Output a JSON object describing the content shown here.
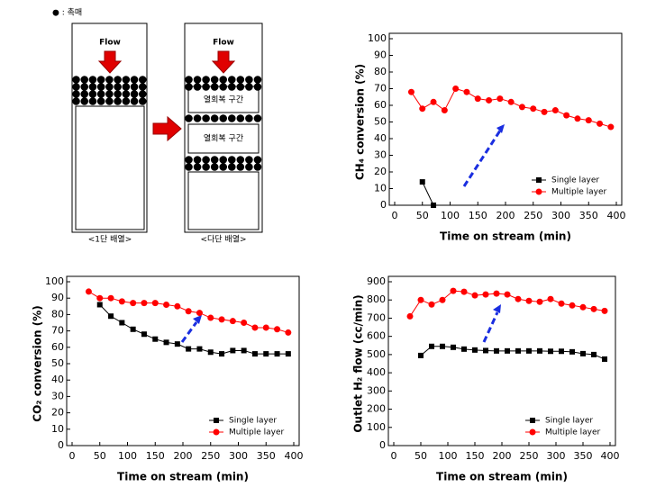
{
  "diagram": {
    "legend": "● : 촉매",
    "panels": [
      {
        "flow": "Flow",
        "caption": "<1단 배열>"
      },
      {
        "flow": "Flow",
        "zones": [
          "열회복 구간",
          "열회복 구간"
        ],
        "caption": "<다단 배열>"
      }
    ]
  },
  "chart_data": [
    {
      "type": "line",
      "xlabel": "Time on stream (min)",
      "ylabel": "CH₄ conversion (%)",
      "x": [
        30,
        50,
        70,
        90,
        110,
        130,
        150,
        170,
        190,
        210,
        230,
        250,
        270,
        290,
        310,
        330,
        350,
        370,
        390
      ],
      "series": [
        {
          "name": "Single layer",
          "color": "#000000",
          "marker": "square",
          "values": [
            null,
            14,
            0,
            null,
            null,
            null,
            null,
            null,
            null,
            null,
            null,
            null,
            null,
            null,
            null,
            null,
            null,
            null,
            null
          ]
        },
        {
          "name": "Multiple layer",
          "color": "#ff0000",
          "marker": "circle",
          "values": [
            68,
            58,
            62,
            57,
            70,
            68,
            64,
            63,
            64,
            62,
            59,
            58,
            56,
            57,
            54,
            52,
            51,
            49,
            47
          ]
        }
      ],
      "xlim": [
        0,
        400
      ],
      "xticks": [
        0,
        50,
        100,
        150,
        200,
        250,
        300,
        350,
        400
      ],
      "ylim": [
        0,
        100
      ],
      "yticks": [
        0,
        10,
        20,
        30,
        40,
        50,
        60,
        70,
        80,
        90,
        100
      ],
      "legend": "lower right"
    },
    {
      "type": "line",
      "xlabel": "Time on stream (min)",
      "ylabel": "CO₂ conversion (%)",
      "x": [
        30,
        50,
        70,
        90,
        110,
        130,
        150,
        170,
        190,
        210,
        230,
        250,
        270,
        290,
        310,
        330,
        350,
        370,
        390
      ],
      "series": [
        {
          "name": "Single layer",
          "color": "#000000",
          "marker": "square",
          "values": [
            null,
            86,
            79,
            75,
            71,
            68,
            65,
            63,
            62,
            59,
            59,
            57,
            56,
            58,
            58,
            56,
            56,
            56,
            56
          ]
        },
        {
          "name": "Multiple layer",
          "color": "#ff0000",
          "marker": "circle",
          "values": [
            94,
            90,
            90,
            88,
            87,
            87,
            87,
            86,
            85,
            82,
            81,
            78,
            77,
            76,
            75,
            72,
            72,
            71,
            69
          ]
        }
      ],
      "xlim": [
        0,
        400
      ],
      "xticks": [
        0,
        50,
        100,
        150,
        200,
        250,
        300,
        350,
        400
      ],
      "ylim": [
        0,
        100
      ],
      "yticks": [
        0,
        10,
        20,
        30,
        40,
        50,
        60,
        70,
        80,
        90,
        100
      ],
      "legend": "lower right"
    },
    {
      "type": "line",
      "xlabel": "Time on stream (min)",
      "ylabel": "Outlet H₂ flow (cc/min)",
      "x": [
        30,
        50,
        70,
        90,
        110,
        130,
        150,
        170,
        190,
        210,
        230,
        250,
        270,
        290,
        310,
        330,
        350,
        370,
        390
      ],
      "series": [
        {
          "name": "Single layer",
          "color": "#000000",
          "marker": "square",
          "values": [
            null,
            495,
            545,
            545,
            540,
            530,
            525,
            522,
            520,
            520,
            520,
            520,
            520,
            518,
            518,
            515,
            505,
            500,
            475
          ]
        },
        {
          "name": "Multiple layer",
          "color": "#ff0000",
          "marker": "circle",
          "values": [
            710,
            800,
            775,
            800,
            850,
            845,
            825,
            830,
            835,
            830,
            805,
            795,
            790,
            805,
            780,
            770,
            760,
            750,
            740
          ]
        }
      ],
      "xlim": [
        0,
        400
      ],
      "xticks": [
        0,
        50,
        100,
        150,
        200,
        250,
        300,
        350,
        400
      ],
      "ylim": [
        0,
        900
      ],
      "yticks": [
        0,
        100,
        200,
        300,
        400,
        500,
        600,
        700,
        800,
        900
      ],
      "legend": "lower right"
    }
  ]
}
